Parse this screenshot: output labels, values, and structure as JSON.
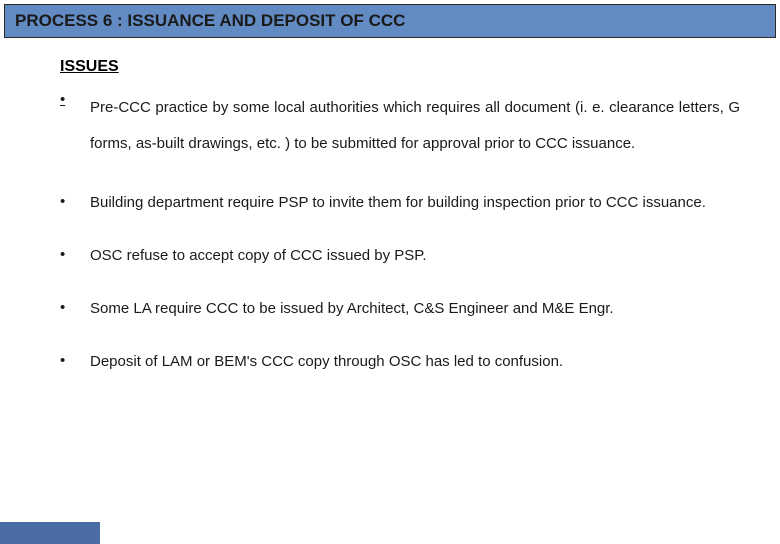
{
  "header": {
    "title": "PROCESS 6 : ISSUANCE AND DEPOSIT OF CCC"
  },
  "section": {
    "heading": "ISSUES"
  },
  "issues": [
    {
      "bullet": "•",
      "text": "Pre-CCC practice by some local authorities which requires all document (i. e. clearance letters, G forms, as-built drawings, etc. ) to be submitted for approval prior to CCC issuance."
    },
    {
      "bullet": "•",
      "text": "Building department require PSP to invite them for building inspection prior to CCC issuance."
    },
    {
      "bullet": "•",
      "text": "OSC refuse to accept copy of CCC issued by PSP."
    },
    {
      "bullet": "•",
      "text": "Some LA require CCC to be issued by Architect, C&S Engineer and M&E Engr."
    },
    {
      "bullet": "•",
      "text": "Deposit of LAM or BEM's CCC copy through OSC has led to confusion."
    }
  ],
  "colors": {
    "header_bg": "#628bc3",
    "footer_bg": "#4a6da3",
    "text": "#1a1a1a",
    "border": "#2a2a2a"
  }
}
